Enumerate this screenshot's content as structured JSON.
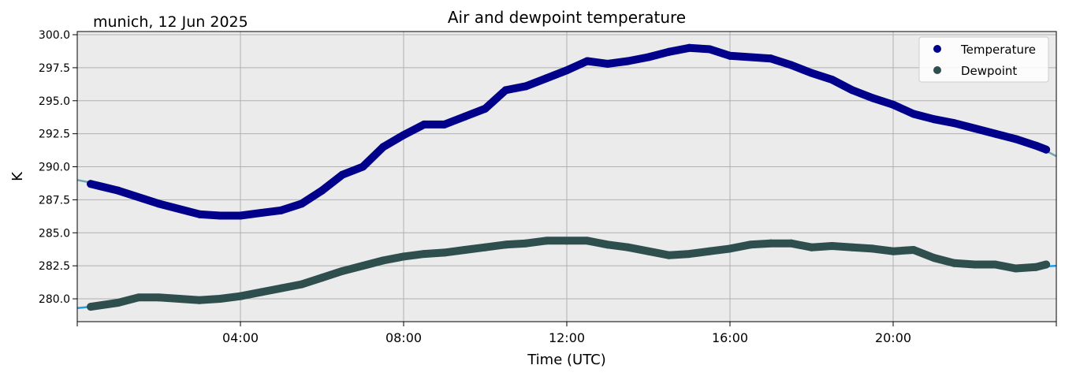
{
  "chart_data": {
    "type": "line",
    "title": "Air and dewpoint temperature",
    "subtitle": "munich, 12 Jun 2025",
    "xlabel": "Time (UTC)",
    "ylabel": "K",
    "xlim_hours": [
      0,
      24
    ],
    "ylim": [
      278.27,
      300.24
    ],
    "xticks": [
      {
        "value": 0,
        "label": ""
      },
      {
        "value": 4,
        "label": "04:00"
      },
      {
        "value": 8,
        "label": "08:00"
      },
      {
        "value": 12,
        "label": "12:00"
      },
      {
        "value": 16,
        "label": "16:00"
      },
      {
        "value": 20,
        "label": "20:00"
      },
      {
        "value": 24,
        "label": ""
      }
    ],
    "yticks": [
      {
        "value": 280.0,
        "label": "280.0"
      },
      {
        "value": 282.5,
        "label": "282.5"
      },
      {
        "value": 285.0,
        "label": "285.0"
      },
      {
        "value": 287.5,
        "label": "287.5"
      },
      {
        "value": 290.0,
        "label": "290.0"
      },
      {
        "value": 292.5,
        "label": "292.5"
      },
      {
        "value": 295.0,
        "label": "295.0"
      },
      {
        "value": 297.5,
        "label": "297.5"
      },
      {
        "value": 300.0,
        "label": "300.0"
      }
    ],
    "grid": true,
    "background": "#ebebeb",
    "legend_placement": "top-right",
    "legend": [
      {
        "label": "Temperature",
        "color": "#00008b"
      },
      {
        "label": "Dewpoint",
        "color": "#2f4f4f"
      }
    ],
    "series": [
      {
        "name": "Temperature raw",
        "style": "line",
        "color": "#6fa5a8",
        "x": [
          0,
          0.33,
          1,
          2,
          3,
          3.5,
          4,
          4.5,
          5,
          5.5,
          6,
          6.5,
          7,
          7.5,
          8,
          8.5,
          9,
          9.5,
          10,
          10.5,
          11,
          11.5,
          12,
          12.5,
          13,
          13.5,
          14,
          14.5,
          15,
          15.5,
          16,
          16.5,
          17,
          17.5,
          18,
          18.5,
          19,
          19.5,
          20,
          20.5,
          21,
          21.5,
          22,
          22.5,
          23,
          23.5,
          24
        ],
        "y": [
          289.0,
          288.8,
          288.2,
          287.2,
          286.4,
          286.3,
          286.2,
          286.5,
          286.8,
          287.2,
          288.2,
          289.6,
          289.9,
          291.6,
          292.2,
          293.3,
          293.0,
          293.9,
          294.4,
          296.0,
          296.0,
          296.7,
          297.3,
          298.0,
          297.6,
          298.0,
          298.3,
          298.7,
          299.0,
          298.9,
          298.3,
          298.3,
          298.2,
          297.7,
          297.1,
          296.6,
          295.8,
          295.2,
          294.7,
          294.0,
          293.6,
          293.3,
          292.9,
          292.5,
          292.1,
          291.6,
          290.8
        ]
      },
      {
        "name": "Dewpoint raw",
        "style": "line",
        "color": "#1f9ce8",
        "x": [
          0,
          0.33,
          1,
          1.5,
          2,
          2.5,
          3,
          3.5,
          4,
          4.5,
          5,
          5.5,
          6,
          6.5,
          7,
          7.5,
          8,
          8.5,
          9,
          9.5,
          10,
          10.5,
          11,
          11.5,
          12,
          12.5,
          13,
          13.5,
          14,
          14.5,
          15,
          15.5,
          16,
          16.5,
          17,
          17.5,
          18,
          18.5,
          19,
          19.5,
          20,
          20.5,
          21,
          21.5,
          22,
          22.5,
          23,
          23.5,
          24
        ],
        "y": [
          279.3,
          279.4,
          279.7,
          280.1,
          280.1,
          280.0,
          279.9,
          280.0,
          280.2,
          280.5,
          280.8,
          281.1,
          281.6,
          282.1,
          282.5,
          282.9,
          283.2,
          283.4,
          283.5,
          283.7,
          283.9,
          284.1,
          284.3,
          284.4,
          284.4,
          284.4,
          284.1,
          283.9,
          283.6,
          283.3,
          283.4,
          283.6,
          283.8,
          284.1,
          284.2,
          284.2,
          283.9,
          284.0,
          283.9,
          283.8,
          283.6,
          283.7,
          283.1,
          282.7,
          282.6,
          282.6,
          282.3,
          282.4,
          282.5
        ]
      },
      {
        "name": "Temperature",
        "style": "dots",
        "color": "#00008b",
        "x": [
          0.33,
          1,
          2,
          3,
          3.5,
          4,
          4.5,
          5,
          5.5,
          6,
          6.5,
          7,
          7.5,
          8,
          8.5,
          9,
          9.5,
          10,
          10.5,
          11,
          11.5,
          12,
          12.5,
          13,
          13.5,
          14,
          14.5,
          15,
          15.5,
          16,
          16.5,
          17,
          17.5,
          18,
          18.5,
          19,
          19.5,
          20,
          20.5,
          21,
          21.5,
          22,
          22.5,
          23,
          23.5,
          23.75
        ],
        "y": [
          288.7,
          288.2,
          287.2,
          286.4,
          286.3,
          286.3,
          286.5,
          286.7,
          287.2,
          288.2,
          289.4,
          290.0,
          291.5,
          292.4,
          293.2,
          293.2,
          293.8,
          294.4,
          295.8,
          296.1,
          296.7,
          297.3,
          298.0,
          297.8,
          298.0,
          298.3,
          298.7,
          299.0,
          298.9,
          298.4,
          298.3,
          298.2,
          297.7,
          297.1,
          296.6,
          295.8,
          295.2,
          294.7,
          294.0,
          293.6,
          293.3,
          292.9,
          292.5,
          292.1,
          291.6,
          291.3
        ]
      },
      {
        "name": "Dewpoint",
        "style": "dots",
        "color": "#2f4f4f",
        "x": [
          0.33,
          1,
          1.5,
          2,
          2.5,
          3,
          3.5,
          4,
          4.5,
          5,
          5.5,
          6,
          6.5,
          7,
          7.5,
          8,
          8.5,
          9,
          9.5,
          10,
          10.5,
          11,
          11.5,
          12,
          12.5,
          13,
          13.5,
          14,
          14.5,
          15,
          15.5,
          16,
          16.5,
          17,
          17.5,
          18,
          18.5,
          19,
          19.5,
          20,
          20.5,
          21,
          21.5,
          22,
          22.5,
          23,
          23.5,
          23.75
        ],
        "y": [
          279.4,
          279.7,
          280.1,
          280.1,
          280.0,
          279.9,
          280.0,
          280.2,
          280.5,
          280.8,
          281.1,
          281.6,
          282.1,
          282.5,
          282.9,
          283.2,
          283.4,
          283.5,
          283.7,
          283.9,
          284.1,
          284.2,
          284.4,
          284.4,
          284.4,
          284.1,
          283.9,
          283.6,
          283.3,
          283.4,
          283.6,
          283.8,
          284.1,
          284.2,
          284.2,
          283.9,
          284.0,
          283.9,
          283.8,
          283.6,
          283.7,
          283.1,
          282.7,
          282.6,
          282.6,
          282.3,
          282.4,
          282.6
        ]
      }
    ]
  }
}
